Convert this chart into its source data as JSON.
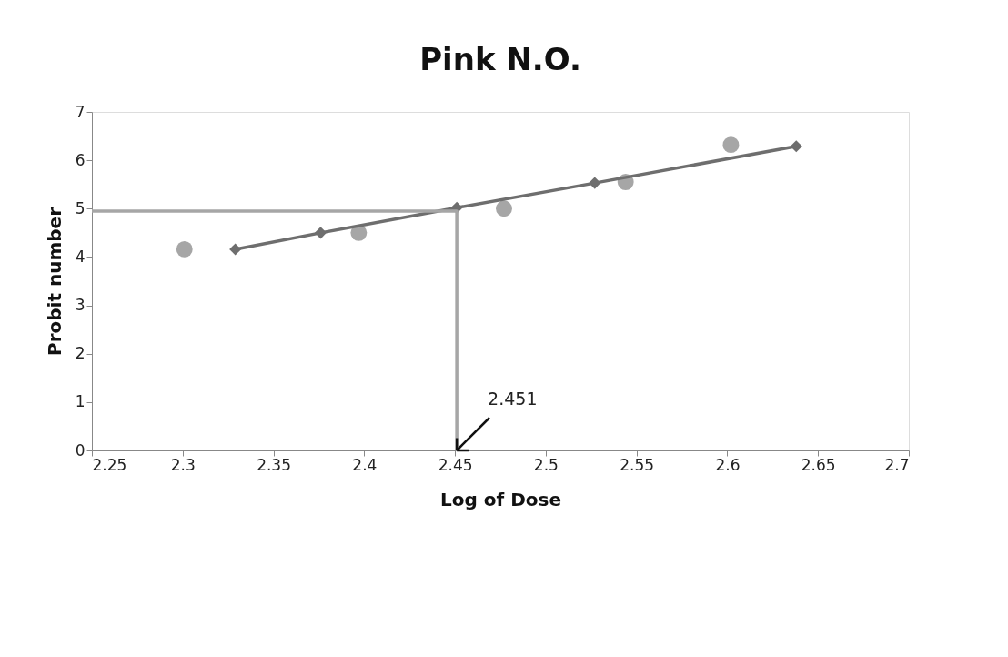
{
  "chart_data": {
    "type": "scatter",
    "title": "Pink N.O.",
    "xlabel": "Log of Dose",
    "ylabel": "Probit number",
    "xlim": [
      2.25,
      2.7
    ],
    "xticks": [
      2.25,
      2.3,
      2.35,
      2.4,
      2.45,
      2.5,
      2.55,
      2.6,
      2.65,
      2.7
    ],
    "ylim": [
      0,
      7
    ],
    "yticks": [
      0,
      1,
      2,
      3,
      4,
      5,
      6,
      7
    ],
    "grid": false,
    "series": [
      {
        "marker": "circle",
        "color": "#a6a6a6",
        "x": [
          2.301,
          2.397,
          2.477,
          2.544,
          2.602
        ],
        "values": [
          4.16,
          4.5,
          5.0,
          5.55,
          6.32
        ]
      },
      {
        "type": "line",
        "marker": "diamond",
        "color": "#6e6e6e",
        "x": [
          2.329,
          2.376,
          2.451,
          2.527,
          2.638
        ],
        "values": [
          4.16,
          4.5,
          5.02,
          5.53,
          6.29
        ]
      },
      {
        "type": "line",
        "marker": "none",
        "color": "#a6a6a6",
        "x": [
          2.25,
          2.451,
          2.451
        ],
        "values": [
          4.95,
          4.95,
          0
        ]
      }
    ],
    "annotations": [
      {
        "text": "2.451",
        "x": 2.451,
        "y": 0
      }
    ]
  }
}
